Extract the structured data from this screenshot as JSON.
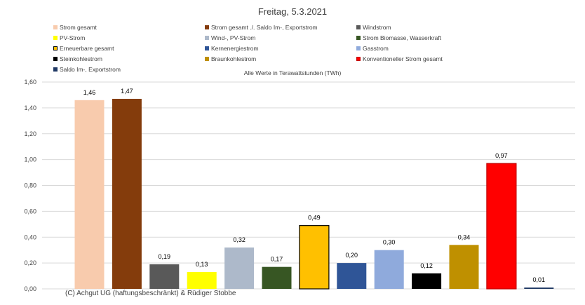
{
  "chart_data": {
    "type": "bar",
    "title": "Freitag, 5.3.2021",
    "note": "Alle Werte in Terawattstunden (TWh)",
    "ylim": [
      0,
      1.6
    ],
    "yticks": [
      "0,00",
      "0,20",
      "0,40",
      "0,60",
      "0,80",
      "1,00",
      "1,20",
      "1,40",
      "1,60"
    ],
    "grid": true,
    "legend_position": "top",
    "series": [
      {
        "name": "Strom gesamt",
        "value": 1.46,
        "label": "1,46",
        "color": "#F8CBAD"
      },
      {
        "name": "Strom gesamt ./. Saldo Im-, Exportstrom",
        "value": 1.47,
        "label": "1,47",
        "color": "#843C0C"
      },
      {
        "name": "Windstrom",
        "value": 0.19,
        "label": "0,19",
        "color": "#595959"
      },
      {
        "name": "PV-Strom",
        "value": 0.13,
        "label": "0,13",
        "color": "#FFFF00"
      },
      {
        "name": "Wind-, PV-Strom",
        "value": 0.32,
        "label": "0,32",
        "color": "#ADB9CA"
      },
      {
        "name": "Strom Biomasse, Wasserkraft",
        "value": 0.17,
        "label": "0,17",
        "color": "#375623"
      },
      {
        "name": "Erneuerbare gesamt",
        "value": 0.49,
        "label": "0,49",
        "color": "#FFC000",
        "outline": "#000000"
      },
      {
        "name": "Kernenergiestrom",
        "value": 0.2,
        "label": "0,20",
        "color": "#2F5597"
      },
      {
        "name": "Gasstrom",
        "value": 0.3,
        "label": "0,30",
        "color": "#8FAADC"
      },
      {
        "name": "Steinkohlestrom",
        "value": 0.12,
        "label": "0,12",
        "color": "#000000"
      },
      {
        "name": "Braunkohlestrom",
        "value": 0.34,
        "label": "0,34",
        "color": "#BF9000"
      },
      {
        "name": "Konventioneller Strom gesamt",
        "value": 0.97,
        "label": "0,97",
        "color": "#FF0000",
        "outline": "#C00000"
      },
      {
        "name": "Saldo Im-, Exportstrom",
        "value": 0.01,
        "label": "0,01",
        "color": "#1F3864"
      }
    ]
  },
  "footer": {
    "copyright": "(C) Achgut UG (haftungsbeschränkt) & Rüdiger Stobbe"
  }
}
